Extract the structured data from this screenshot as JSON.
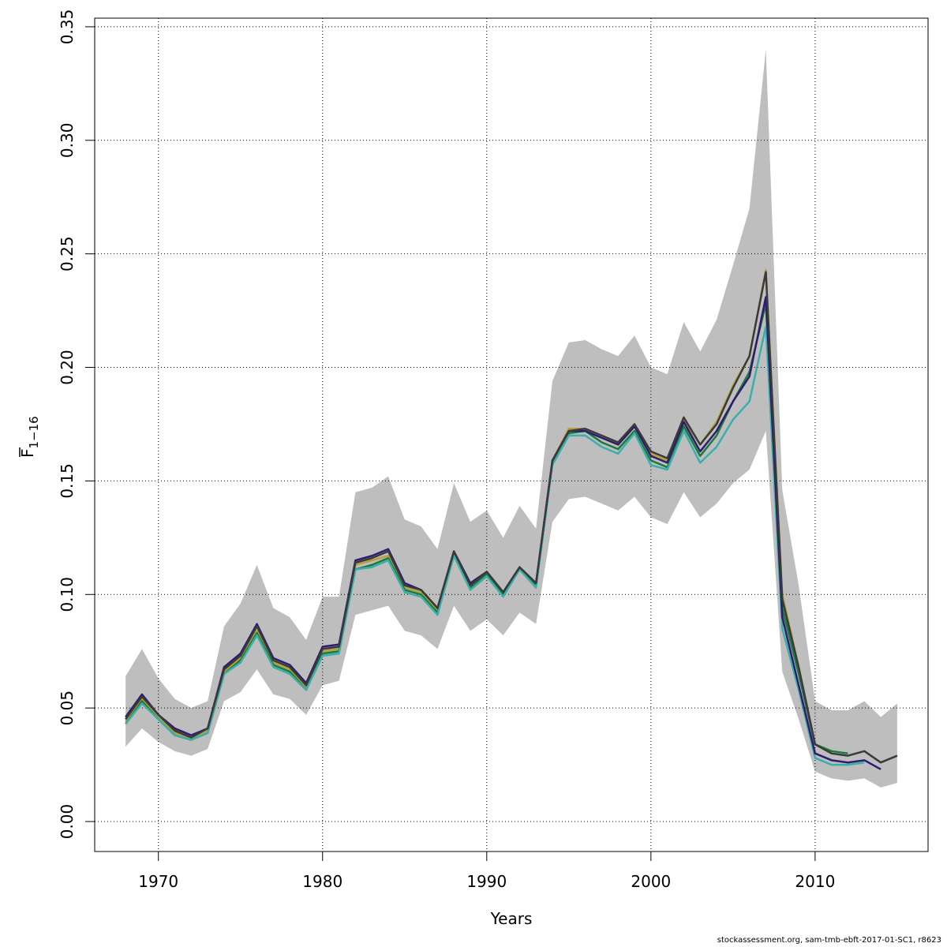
{
  "chart_data": {
    "type": "line",
    "xlabel": "Years",
    "ylabel": "F",
    "ylabel_sub": "1−16",
    "footer": "stockassessment.org, sam-tmb-ebft-2017-01-SC1, r8623",
    "x": [
      1968,
      1969,
      1970,
      1971,
      1972,
      1973,
      1974,
      1975,
      1976,
      1977,
      1978,
      1979,
      1980,
      1981,
      1982,
      1983,
      1984,
      1985,
      1986,
      1987,
      1988,
      1989,
      1990,
      1991,
      1992,
      1993,
      1994,
      1995,
      1996,
      1997,
      1998,
      1999,
      2000,
      2001,
      2002,
      2003,
      2004,
      2005,
      2006,
      2007,
      2008,
      2009,
      2010,
      2011,
      2012,
      2013,
      2014,
      2015
    ],
    "band": {
      "color": "#bebebe",
      "upper": [
        0.064,
        0.076,
        0.063,
        0.054,
        0.05,
        0.053,
        0.086,
        0.096,
        0.113,
        0.094,
        0.09,
        0.08,
        0.099,
        0.099,
        0.145,
        0.147,
        0.152,
        0.133,
        0.13,
        0.12,
        0.149,
        0.132,
        0.137,
        0.125,
        0.139,
        0.129,
        0.194,
        0.211,
        0.212,
        0.208,
        0.205,
        0.214,
        0.2,
        0.197,
        0.22,
        0.207,
        0.221,
        0.245,
        0.27,
        0.34,
        0.146,
        0.104,
        0.053,
        0.049,
        0.049,
        0.053,
        0.046,
        0.052
      ],
      "lower": [
        0.033,
        0.041,
        0.035,
        0.031,
        0.029,
        0.032,
        0.053,
        0.057,
        0.067,
        0.056,
        0.054,
        0.047,
        0.06,
        0.062,
        0.091,
        0.093,
        0.095,
        0.084,
        0.082,
        0.076,
        0.095,
        0.084,
        0.089,
        0.082,
        0.092,
        0.087,
        0.132,
        0.142,
        0.143,
        0.14,
        0.137,
        0.143,
        0.134,
        0.131,
        0.145,
        0.134,
        0.14,
        0.149,
        0.155,
        0.172,
        0.066,
        0.045,
        0.022,
        0.019,
        0.018,
        0.019,
        0.015,
        0.017
      ]
    },
    "series": [
      {
        "color": "#b8a03a",
        "values": [
          0.044,
          0.054,
          0.046,
          0.039,
          0.037,
          0.04,
          0.066,
          0.072,
          0.084,
          0.07,
          0.067,
          0.059,
          0.075,
          0.076,
          0.113,
          0.115,
          0.117,
          0.103,
          0.101,
          0.093,
          0.118,
          0.104,
          0.11,
          0.1,
          0.112,
          0.104,
          0.159,
          0.173,
          0.173,
          0.17,
          0.166,
          0.174,
          0.162,
          0.159,
          0.177,
          0.166,
          0.176,
          0.192,
          0.205,
          0.243,
          0.1,
          0.068,
          0.034,
          0.03,
          null,
          null,
          null,
          null
        ]
      },
      {
        "color": "#1b7a3e",
        "values": [
          0.043,
          0.053,
          0.045,
          0.038,
          0.036,
          0.039,
          0.065,
          0.071,
          0.083,
          0.069,
          0.066,
          0.058,
          0.074,
          0.075,
          0.111,
          0.113,
          0.116,
          0.102,
          0.1,
          0.092,
          0.118,
          0.103,
          0.109,
          0.1,
          0.111,
          0.104,
          0.158,
          0.171,
          0.172,
          0.167,
          0.164,
          0.172,
          0.159,
          0.156,
          0.174,
          0.161,
          0.17,
          0.185,
          0.198,
          0.228,
          0.094,
          0.065,
          0.034,
          0.031,
          0.03,
          null,
          null,
          null
        ]
      },
      {
        "color": "#3aafa9",
        "values": [
          0.043,
          0.052,
          0.045,
          0.038,
          0.036,
          0.039,
          0.065,
          0.07,
          0.082,
          0.068,
          0.065,
          0.058,
          0.073,
          0.074,
          0.111,
          0.112,
          0.115,
          0.101,
          0.099,
          0.091,
          0.117,
          0.102,
          0.108,
          0.099,
          0.111,
          0.103,
          0.157,
          0.17,
          0.17,
          0.165,
          0.162,
          0.171,
          0.157,
          0.155,
          0.172,
          0.158,
          0.165,
          0.177,
          0.185,
          0.218,
          0.085,
          0.058,
          0.028,
          0.025,
          0.025,
          0.026,
          null,
          null
        ]
      },
      {
        "color": "#2e1c72",
        "values": [
          0.046,
          0.056,
          0.047,
          0.041,
          0.038,
          0.041,
          0.068,
          0.074,
          0.087,
          0.072,
          0.069,
          0.061,
          0.077,
          0.078,
          0.115,
          0.117,
          0.12,
          0.105,
          0.102,
          0.094,
          0.119,
          0.105,
          0.11,
          0.101,
          0.112,
          0.105,
          0.159,
          0.172,
          0.172,
          0.169,
          0.166,
          0.174,
          0.161,
          0.158,
          0.176,
          0.163,
          0.172,
          0.185,
          0.196,
          0.231,
          0.09,
          0.06,
          0.03,
          0.027,
          0.026,
          0.027,
          0.023,
          null
        ]
      },
      {
        "color": "#3a3a3a",
        "values": [
          0.045,
          0.055,
          0.047,
          0.04,
          0.037,
          0.041,
          0.067,
          0.073,
          0.086,
          0.071,
          0.068,
          0.06,
          0.076,
          0.077,
          0.114,
          0.116,
          0.119,
          0.104,
          0.102,
          0.094,
          0.119,
          0.104,
          0.11,
          0.101,
          0.112,
          0.105,
          0.159,
          0.172,
          0.173,
          0.17,
          0.167,
          0.175,
          0.163,
          0.16,
          0.178,
          0.166,
          0.175,
          0.191,
          0.205,
          0.242,
          0.098,
          0.068,
          0.034,
          0.03,
          0.029,
          0.031,
          0.026,
          0.029
        ]
      }
    ],
    "xlim": [
      1966.12,
      2016.88
    ],
    "ylim": [
      -0.0132,
      0.3538
    ],
    "xticks": [
      1970,
      1980,
      1990,
      2000,
      2010
    ],
    "yticks": [
      {
        "value": 0,
        "label": "0.00"
      },
      {
        "value": 0.05,
        "label": "0.05"
      },
      {
        "value": 0.1,
        "label": "0.10"
      },
      {
        "value": 0.15,
        "label": "0.15"
      },
      {
        "value": 0.2,
        "label": "0.20"
      },
      {
        "value": 0.25,
        "label": "0.25"
      },
      {
        "value": 0.3,
        "label": "0.30"
      },
      {
        "value": 0.35,
        "label": "0.35"
      }
    ],
    "grid": true
  }
}
